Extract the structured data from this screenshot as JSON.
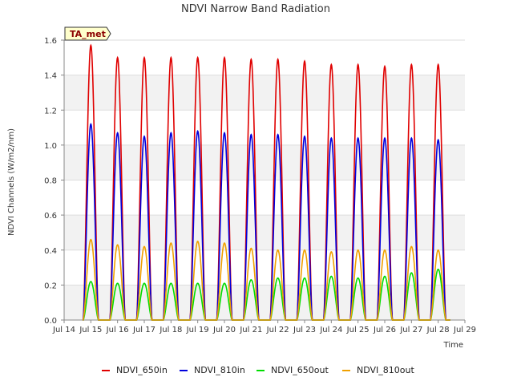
{
  "chart_data": {
    "type": "line",
    "title": "NDVI Narrow Band Radiation",
    "xlabel": "Time",
    "ylabel": "NDVI Channels (W/m2/nm)",
    "badge": "TA_met",
    "ylim": [
      0,
      1.6
    ],
    "yticks": [
      0.0,
      0.2,
      0.4,
      0.6,
      0.8,
      1.0,
      1.2,
      1.4,
      1.6
    ],
    "ytick_labels": [
      "0.0",
      "0.2",
      "0.4",
      "0.6",
      "0.8",
      "1.0",
      "1.2",
      "1.4",
      "1.6"
    ],
    "xlim": [
      14,
      29
    ],
    "xticks": [
      14,
      15,
      16,
      17,
      18,
      19,
      20,
      21,
      22,
      23,
      24,
      25,
      26,
      27,
      28,
      29
    ],
    "xtick_labels": [
      "Jul 14",
      "Jul 15",
      "Jul 16",
      "Jul 17",
      "Jul 18",
      "Jul 19",
      "Jul 20",
      "Jul 21",
      "Jul 22",
      "Jul 23",
      "Jul 24",
      "Jul 25",
      "Jul 26",
      "Jul 27",
      "Jul 28",
      "Jul 29"
    ],
    "data_start": 14.7,
    "data_end": 28.45,
    "grid": true,
    "legend_position": "bottom",
    "daily_peak_day": [
      15,
      16,
      17,
      18,
      19,
      20,
      21,
      22,
      23,
      24,
      25,
      26,
      27,
      28
    ],
    "series": [
      {
        "name": "NDVI_650in",
        "color": "#e00000",
        "peaks": [
          1.57,
          1.5,
          1.5,
          1.5,
          1.5,
          1.5,
          1.49,
          1.49,
          1.48,
          1.46,
          1.46,
          1.45,
          1.46,
          1.46
        ]
      },
      {
        "name": "NDVI_810in",
        "color": "#0000dd",
        "peaks": [
          1.12,
          1.07,
          1.05,
          1.07,
          1.08,
          1.07,
          1.06,
          1.06,
          1.05,
          1.04,
          1.04,
          1.04,
          1.04,
          1.03
        ]
      },
      {
        "name": "NDVI_650out",
        "color": "#00dd00",
        "peaks": [
          0.22,
          0.21,
          0.21,
          0.21,
          0.21,
          0.21,
          0.23,
          0.24,
          0.24,
          0.25,
          0.24,
          0.25,
          0.27,
          0.29
        ]
      },
      {
        "name": "NDVI_810out",
        "color": "#f0a000",
        "peaks": [
          0.46,
          0.43,
          0.42,
          0.44,
          0.45,
          0.44,
          0.41,
          0.4,
          0.4,
          0.39,
          0.4,
          0.4,
          0.42,
          0.4
        ]
      }
    ]
  }
}
